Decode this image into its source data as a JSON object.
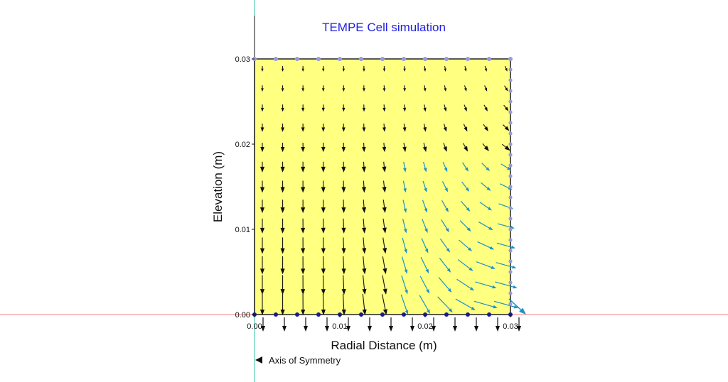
{
  "chart_data": {
    "type": "vector-field",
    "title": "TEMPE Cell simulation",
    "xlabel": "Radial Distance (m)",
    "ylabel": "Elevation (m)",
    "xlim": [
      0,
      0.03
    ],
    "ylim": [
      0,
      0.03
    ],
    "x_ticks": [
      {
        "value": 0.0,
        "label": "0.00"
      },
      {
        "value": 0.01,
        "label": "0.01"
      },
      {
        "value": 0.02,
        "label": "0.02"
      },
      {
        "value": 0.03,
        "label": "0.03"
      }
    ],
    "y_ticks": [
      {
        "value": 0.0,
        "label": "0.00"
      },
      {
        "value": 0.01,
        "label": "0.01"
      },
      {
        "value": 0.02,
        "label": "0.02"
      },
      {
        "value": 0.03,
        "label": "0.03"
      }
    ],
    "grid": false,
    "domain": {
      "x": [
        0,
        0.03
      ],
      "y": [
        0,
        0.03
      ]
    },
    "mesh_columns": 13,
    "mesh_rows": 13,
    "bottom_outflow_vectors": 13,
    "annotation": "Axis of Symmetry",
    "colors": {
      "domain_fill": "#ffff80",
      "domain_border": "#222222",
      "interior_vectors": "#111111",
      "edge_vectors": "#1e90c8",
      "top_boundary_nodes": "#9999dd",
      "right_boundary_nodes": "#9999dd",
      "bottom_boundary_nodes": "#1a1a99",
      "title": "#1f1fe0",
      "symmetry_axis_line": "#2ec4a0",
      "zero_elevation_line": "#f08080"
    }
  }
}
